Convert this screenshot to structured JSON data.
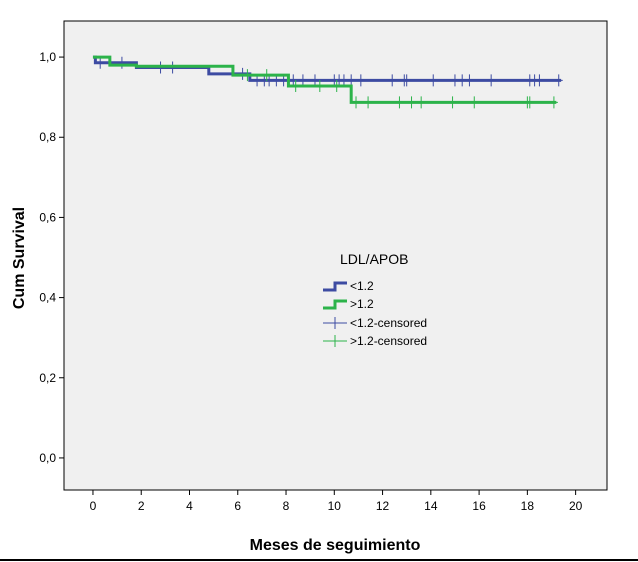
{
  "chart_data": {
    "type": "line",
    "subtype": "kaplan-meier",
    "title": "",
    "xlabel": "Meses de seguimiento",
    "ylabel": "Cum Survival",
    "xlim": [
      -1.2,
      21.3
    ],
    "ylim": [
      -0.08,
      1.09
    ],
    "x_ticks": [
      0,
      2,
      4,
      6,
      8,
      10,
      12,
      14,
      16,
      18,
      20
    ],
    "y_ticks": [
      0.0,
      0.2,
      0.4,
      0.6,
      0.8,
      1.0
    ],
    "y_tick_labels": [
      "0,0",
      "0,2",
      "0,4",
      "0,6",
      "0,8",
      "1,0"
    ],
    "plot_background": "#f0f0f0",
    "grid": false,
    "legend": {
      "title": "LDL/APOB",
      "position": "center",
      "entries": [
        "<1.2",
        ">1.2",
        "<1.2-censored",
        ">1.2-censored"
      ]
    },
    "series": [
      {
        "name": "<1.2",
        "color": "#3d4ba2",
        "steps": [
          [
            0,
            1.0
          ],
          [
            0.1,
            0.986
          ],
          [
            1.8,
            0.974
          ],
          [
            4.8,
            0.958
          ],
          [
            6.5,
            0.942
          ],
          [
            19.4,
            0.942
          ]
        ],
        "censored": [
          [
            0.3,
            0.986
          ],
          [
            1.2,
            0.986
          ],
          [
            2.8,
            0.974
          ],
          [
            3.3,
            0.974
          ],
          [
            6.2,
            0.958
          ],
          [
            6.8,
            0.942
          ],
          [
            7.1,
            0.942
          ],
          [
            7.3,
            0.942
          ],
          [
            7.6,
            0.942
          ],
          [
            7.9,
            0.942
          ],
          [
            8.3,
            0.942
          ],
          [
            8.7,
            0.942
          ],
          [
            9.2,
            0.942
          ],
          [
            10.0,
            0.942
          ],
          [
            10.2,
            0.942
          ],
          [
            10.4,
            0.942
          ],
          [
            10.7,
            0.942
          ],
          [
            11.1,
            0.942
          ],
          [
            12.4,
            0.942
          ],
          [
            12.9,
            0.942
          ],
          [
            13.0,
            0.942
          ],
          [
            14.1,
            0.942
          ],
          [
            15.0,
            0.942
          ],
          [
            15.3,
            0.942
          ],
          [
            15.6,
            0.942
          ],
          [
            16.5,
            0.942
          ],
          [
            18.1,
            0.942
          ],
          [
            18.3,
            0.942
          ],
          [
            18.5,
            0.942
          ],
          [
            19.3,
            0.942
          ]
        ]
      },
      {
        "name": ">1.2",
        "color": "#2cb34a",
        "steps": [
          [
            0,
            1.0
          ],
          [
            0.7,
            0.98
          ],
          [
            1.8,
            0.977
          ],
          [
            5.8,
            0.955
          ],
          [
            8.1,
            0.928
          ],
          [
            10.7,
            0.887
          ],
          [
            19.2,
            0.887
          ]
        ],
        "censored": [
          [
            6.4,
            0.955
          ],
          [
            7.2,
            0.955
          ],
          [
            8.4,
            0.928
          ],
          [
            9.4,
            0.928
          ],
          [
            10.1,
            0.928
          ],
          [
            10.9,
            0.887
          ],
          [
            11.4,
            0.887
          ],
          [
            12.7,
            0.887
          ],
          [
            13.2,
            0.887
          ],
          [
            13.6,
            0.887
          ],
          [
            14.9,
            0.887
          ],
          [
            15.8,
            0.887
          ],
          [
            18.0,
            0.887
          ],
          [
            18.1,
            0.887
          ],
          [
            19.1,
            0.887
          ]
        ]
      }
    ]
  }
}
